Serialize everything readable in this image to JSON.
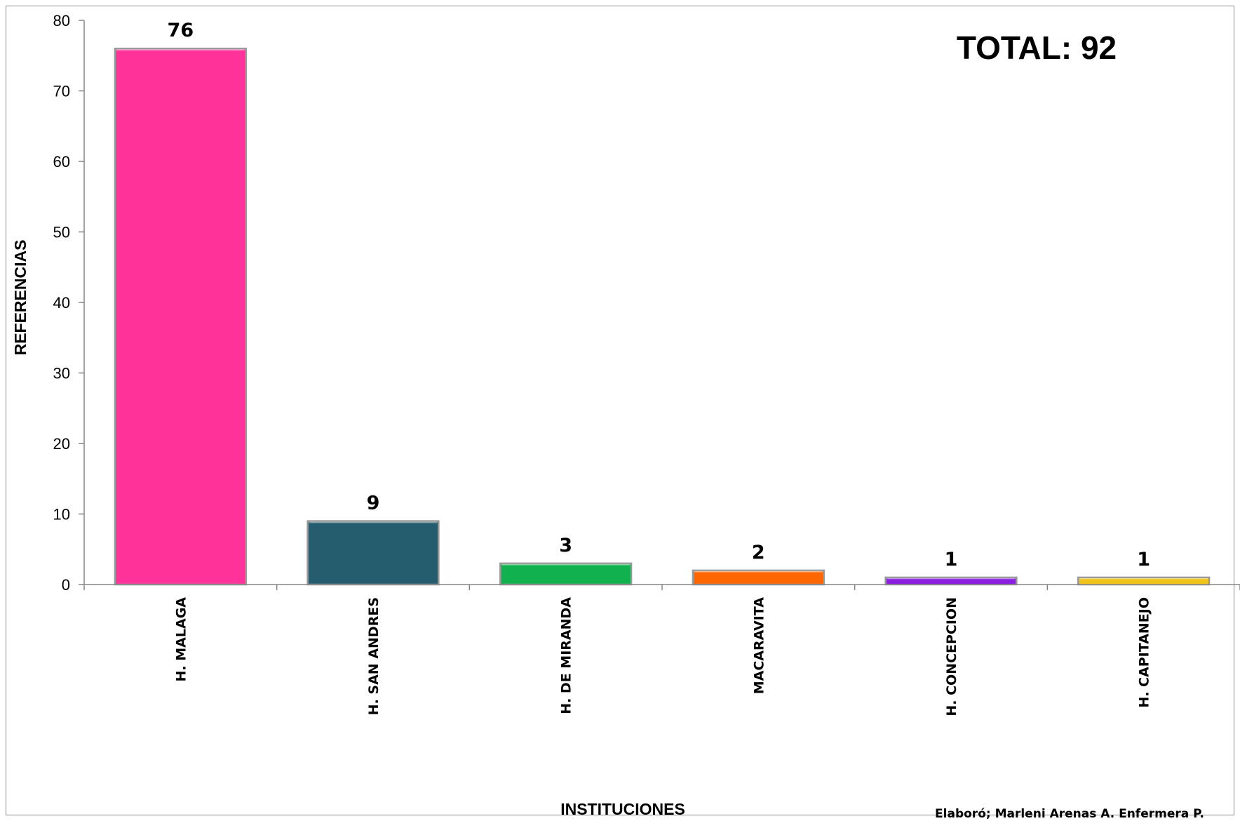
{
  "chart_data": {
    "type": "bar",
    "categories": [
      "H.  MALAGA",
      "H. SAN ANDRES",
      "H.  DE MIRANDA",
      "MACARAVITA",
      "H. CONCEPCION",
      "H. CAPITANEJO"
    ],
    "values": [
      76,
      9,
      3,
      2,
      1,
      1
    ],
    "colors": [
      "#ff3399",
      "#255d6e",
      "#11b14f",
      "#ff6600",
      "#8a1fe0",
      "#f0c419"
    ],
    "xlabel": "INSTITUCIONES",
    "ylabel": "REFERENCIAS",
    "ylim": [
      0,
      80
    ],
    "yticks": [
      0,
      10,
      20,
      30,
      40,
      50,
      60,
      70,
      80
    ],
    "data_labels": true,
    "grid": false,
    "annotations": {
      "total": "TOTAL: 92",
      "credit": "Elaboró; Marleni Arenas A. Enfermera P."
    }
  }
}
